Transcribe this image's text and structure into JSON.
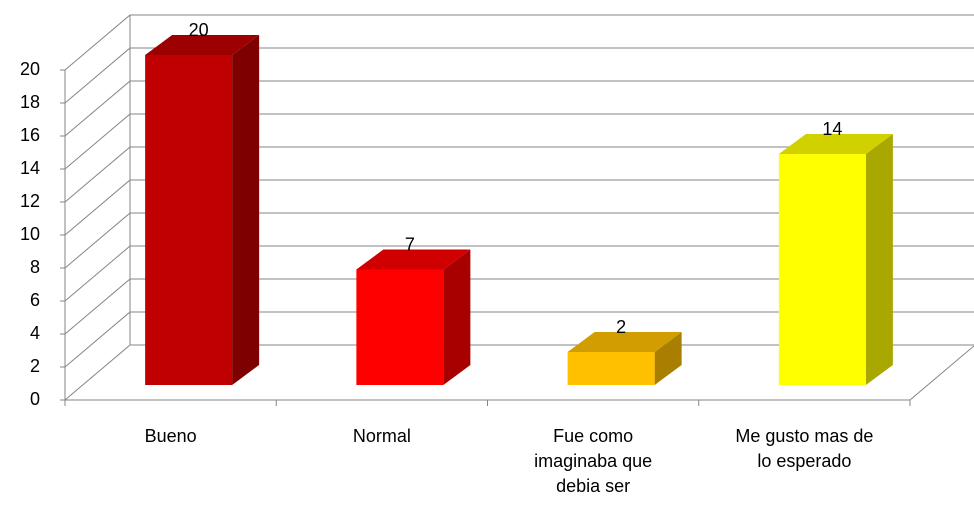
{
  "chart_data": {
    "type": "bar3d",
    "categories": [
      "Bueno",
      "Normal",
      "Fue como imaginaba que debia ser",
      "Me gusto mas de lo esperado"
    ],
    "values": [
      20,
      7,
      2,
      14
    ],
    "colors": [
      "#c00000",
      "#ff0000",
      "#ffc000",
      "#ffff00"
    ],
    "ylim": [
      0,
      20
    ],
    "yticks": [
      0,
      2,
      4,
      6,
      8,
      10,
      12,
      14,
      16,
      18,
      20
    ],
    "grid": true
  }
}
